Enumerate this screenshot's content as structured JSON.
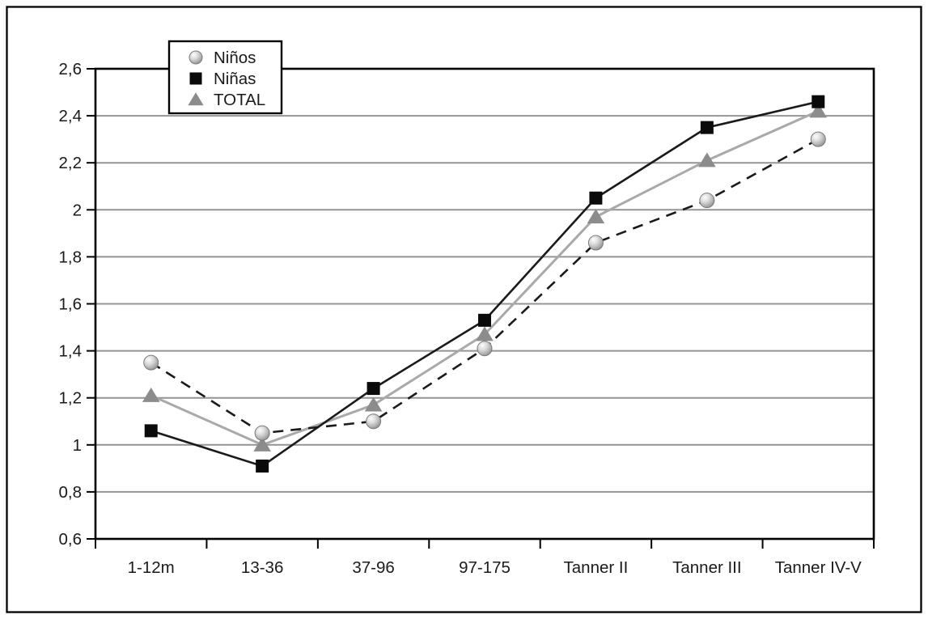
{
  "figure": {
    "background_color": "#ffffff",
    "outer_border_color": "#000000"
  },
  "chart_data": {
    "type": "line",
    "title": "",
    "xlabel": "",
    "ylabel": "",
    "categories": [
      "1-12m",
      "13-36",
      "37-96",
      "97-175",
      "Tanner II",
      "Tanner III",
      "Tanner IV-V"
    ],
    "series": [
      {
        "name": "Niños",
        "marker": "circle",
        "line_style": "dashed",
        "line_color": "#1a1a1a",
        "marker_color": "#c8c8c8",
        "values": [
          1.35,
          1.05,
          1.1,
          1.41,
          1.86,
          2.04,
          2.3
        ]
      },
      {
        "name": "Niñas",
        "marker": "square",
        "line_style": "solid",
        "line_color": "#1a1a1a",
        "marker_color": "#0a0a0a",
        "values": [
          1.06,
          0.91,
          1.24,
          1.53,
          2.05,
          2.35,
          2.46
        ]
      },
      {
        "name": "TOTAL",
        "marker": "triangle",
        "line_style": "solid",
        "line_color": "#a9a9a9",
        "marker_color": "#8c8c8c",
        "values": [
          1.21,
          1.0,
          1.17,
          1.47,
          1.97,
          2.21,
          2.42
        ]
      }
    ],
    "ylim": [
      0.6,
      2.6
    ],
    "ytick_step": 0.2,
    "ytick_labels": [
      "0,6",
      "0,8",
      "1",
      "1,2",
      "1,4",
      "1,6",
      "1,8",
      "2",
      "2,2",
      "2,4",
      "2,6"
    ],
    "grid": true,
    "grid_color": "#949494",
    "axis_color": "#000000",
    "legend": {
      "position": "top-left-inside",
      "items": [
        "Niños",
        "Niñas",
        "TOTAL"
      ]
    }
  }
}
